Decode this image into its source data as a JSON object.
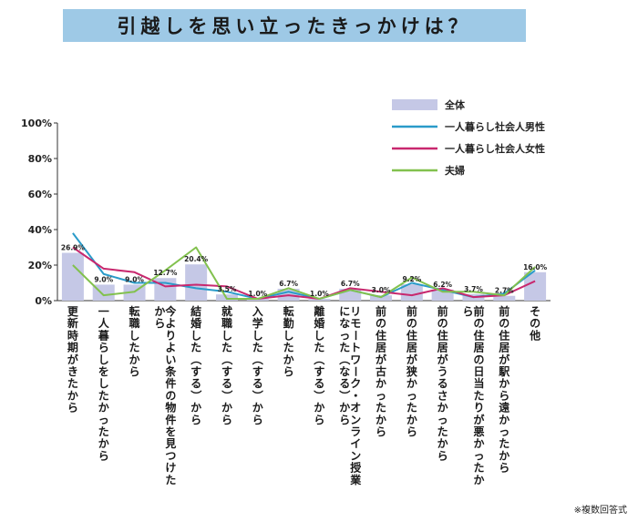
{
  "title": "引越しを思い立ったきっかけは？",
  "footnote": "※複数回答式",
  "chart_data": {
    "type": "bar",
    "title": "引越しを思い立ったきっかけは？",
    "ylim": [
      0,
      100
    ],
    "yticks": [
      "0%",
      "20%",
      "40%",
      "60%",
      "80%",
      "100%"
    ],
    "grid": false,
    "legend_position": "top-right",
    "categories": [
      "更新時期がきたから",
      "一人暮らしをしたかったから",
      "転職したから",
      "今よりよい条件の物件を見つけたから",
      "結婚した（する）から",
      "就職した（する）から",
      "入学した（する）から",
      "転勤したから",
      "離婚した（する）から",
      "リモートワーク・オンライン授業になった（なる）から",
      "前の住居が古かったから",
      "前の住居が狭かったから",
      "前の住居がうるさかったから",
      "前の住居の日当たりが悪かったから",
      "前の住居が駅から遠かったから",
      "その他"
    ],
    "series": [
      {
        "name": "全体",
        "kind": "bar",
        "color": "#c5c8e6",
        "values": [
          26.9,
          9.0,
          9.0,
          12.7,
          20.4,
          3.5,
          1.0,
          6.7,
          1.0,
          6.7,
          3.0,
          9.2,
          6.2,
          3.7,
          2.7,
          16.0
        ],
        "labels": [
          "26.9%",
          "9.0%",
          "9.0%",
          "12.7%",
          "20.4%",
          "3.5%",
          "1.0%",
          "6.7%",
          "1.0%",
          "6.7%",
          "3.0%",
          "9.2%",
          "6.2%",
          "3.7%",
          "2.7%",
          "16.0%"
        ]
      },
      {
        "name": "一人暮らし社会人男性",
        "kind": "line",
        "color": "#2a9bc9",
        "values": [
          38,
          15,
          10,
          10,
          7,
          5,
          1,
          5,
          1,
          6,
          2,
          10,
          6,
          2,
          4,
          17
        ]
      },
      {
        "name": "一人暮らし社会人女性",
        "kind": "line",
        "color": "#c8286e",
        "values": [
          30,
          18,
          16,
          8,
          9,
          8,
          1,
          3,
          1,
          7,
          5,
          3,
          7,
          2,
          3,
          11
        ]
      },
      {
        "name": "夫婦",
        "kind": "line",
        "color": "#82c14e",
        "values": [
          20,
          3,
          5,
          17,
          30,
          1,
          1,
          7,
          1,
          6,
          2,
          13,
          5,
          5,
          3,
          19
        ]
      }
    ]
  }
}
